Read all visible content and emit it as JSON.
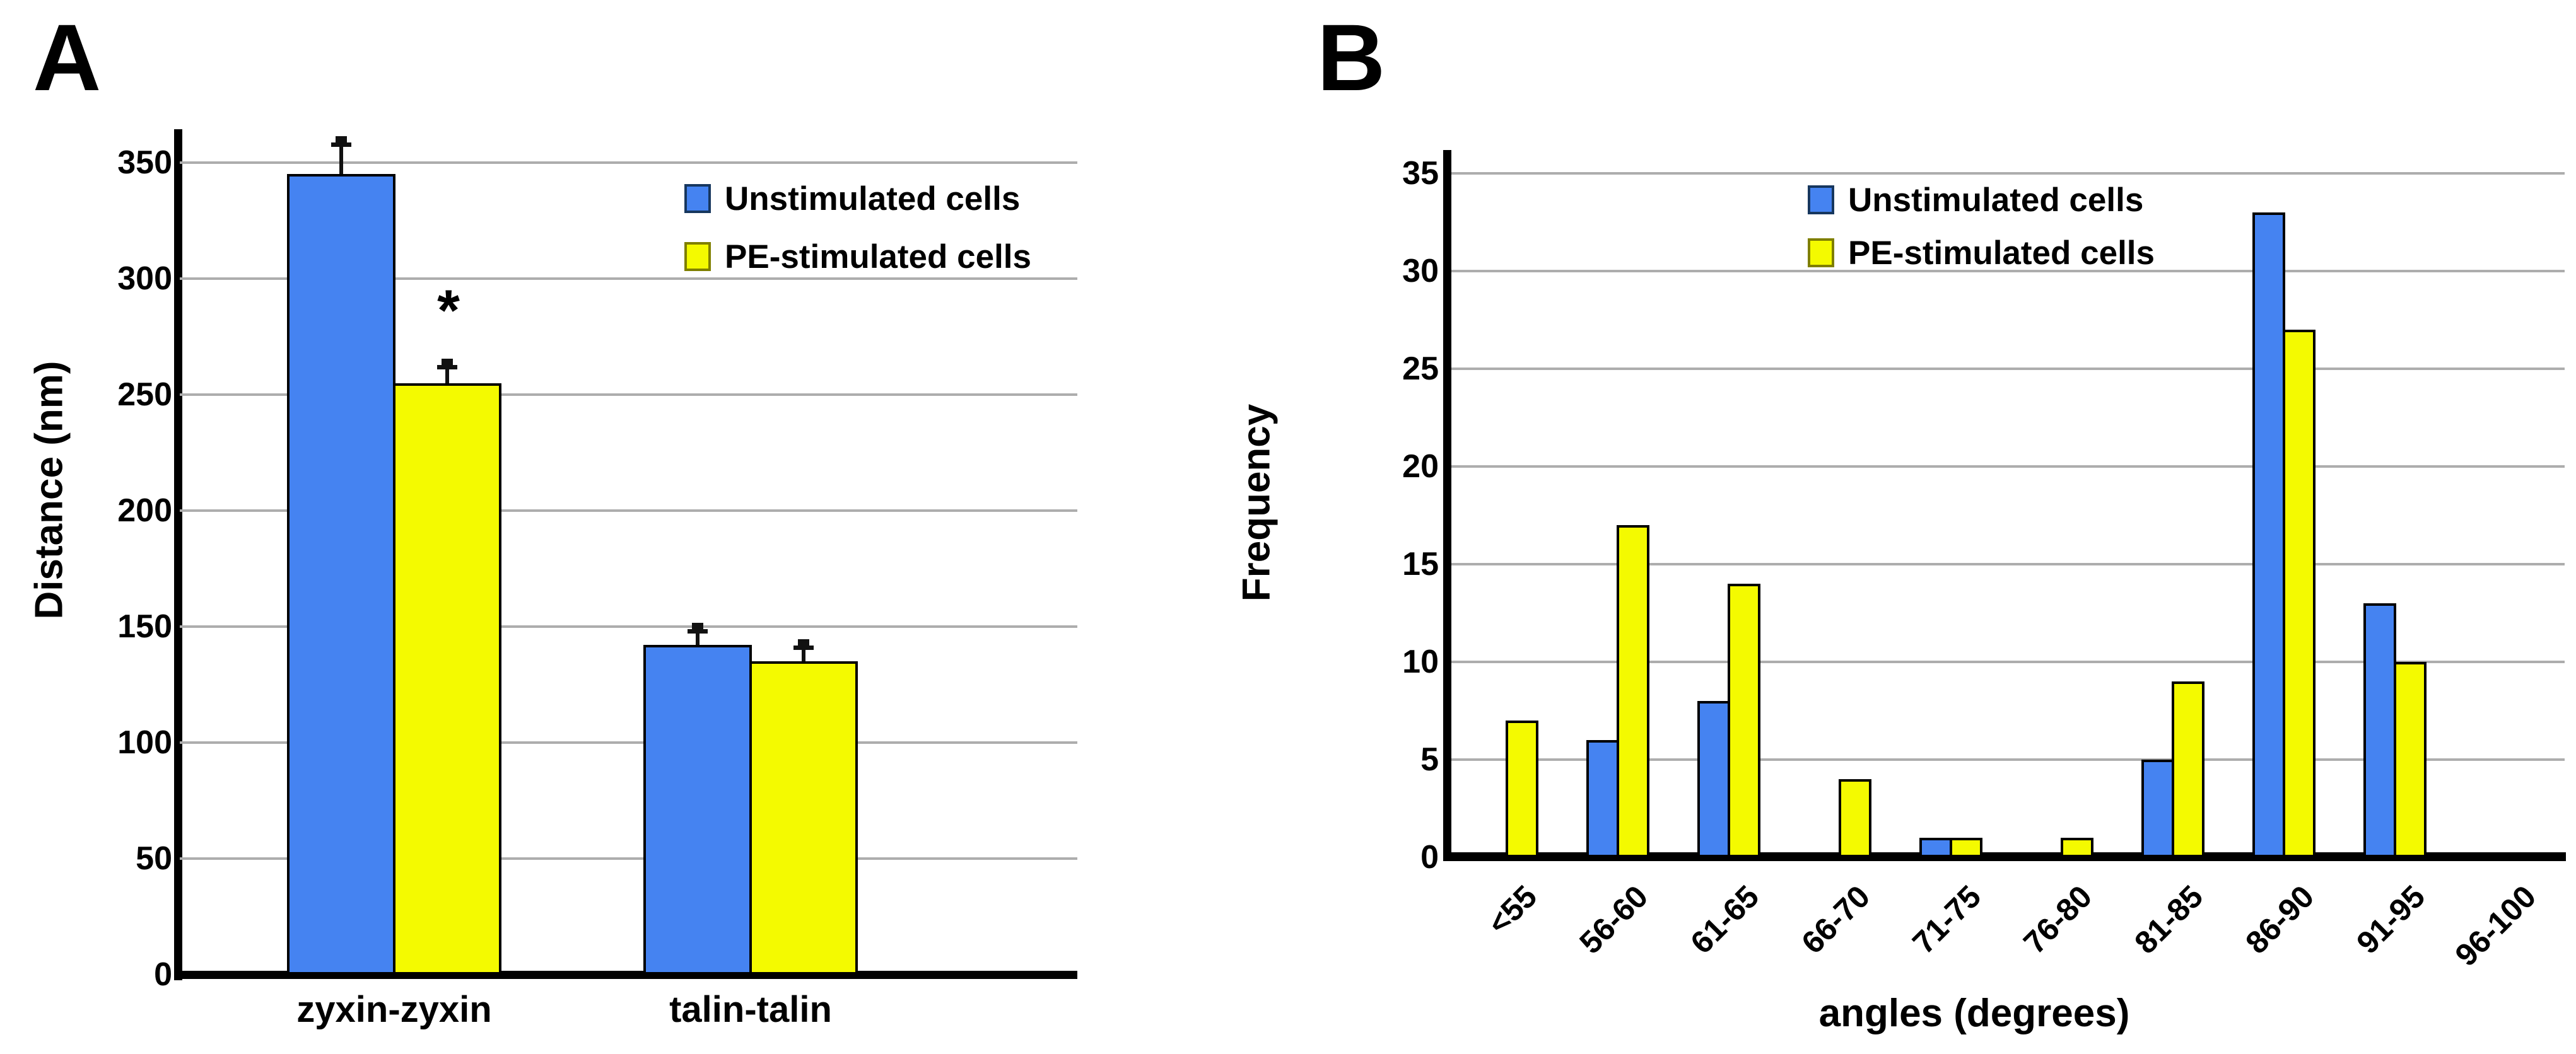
{
  "background": "#ffffff",
  "colors": {
    "blue_fill": "#4583f1",
    "blue_border": "#17375e",
    "yellow_fill": "#f4fa00",
    "yellow_border": "#7f7f00",
    "bar_outline": "#000000",
    "gridline": "#adadad",
    "axis": "#000000",
    "text": "#000000"
  },
  "panels": [
    {
      "label": "A"
    },
    {
      "label": "B"
    }
  ],
  "chart_data": [
    {
      "panel": "A",
      "type": "bar",
      "title": "",
      "xlabel": "",
      "ylabel": "Distance (nm)",
      "ylim": [
        0,
        350
      ],
      "yticks": [
        0,
        50,
        100,
        150,
        200,
        250,
        300,
        350
      ],
      "grid": true,
      "legend_position": "top-right-inside",
      "categories": [
        "zyxin-zyxin",
        "talin-talin"
      ],
      "series": [
        {
          "name": "Unstimulated cells",
          "color": "#4583f1",
          "values": [
            345,
            142
          ],
          "errors": [
            13,
            6
          ]
        },
        {
          "name": "PE-stimulated cells",
          "color": "#f4fa00",
          "values": [
            255,
            135
          ],
          "errors": [
            7,
            6
          ]
        }
      ],
      "annotations": [
        {
          "text": "*",
          "category": 0,
          "series": 1
        }
      ]
    },
    {
      "panel": "B",
      "type": "bar",
      "title": "",
      "xlabel": "angles (degrees)",
      "ylabel": "Frequency",
      "ylim": [
        0,
        35
      ],
      "yticks": [
        0,
        5,
        10,
        15,
        20,
        25,
        30,
        35
      ],
      "grid": true,
      "legend_position": "top-inside",
      "categories": [
        "<55",
        "56-60",
        "61-65",
        "66-70",
        "71-75",
        "76-80",
        "81-85",
        "86-90",
        "91-95",
        "96-100"
      ],
      "series": [
        {
          "name": "Unstimulated cells",
          "color": "#4583f1",
          "values": [
            0,
            6,
            8,
            0,
            1,
            0,
            5,
            33,
            13,
            0
          ],
          "errors": [
            0,
            0,
            0,
            0,
            0,
            0,
            0,
            0,
            0,
            0
          ]
        },
        {
          "name": "PE-stimulated cells",
          "color": "#f4fa00",
          "values": [
            7,
            17,
            14,
            4,
            1,
            1,
            9,
            27,
            10,
            0
          ],
          "errors": [
            0,
            0,
            0,
            0,
            0,
            0,
            0,
            0,
            0,
            0
          ]
        }
      ],
      "annotations": []
    }
  ]
}
